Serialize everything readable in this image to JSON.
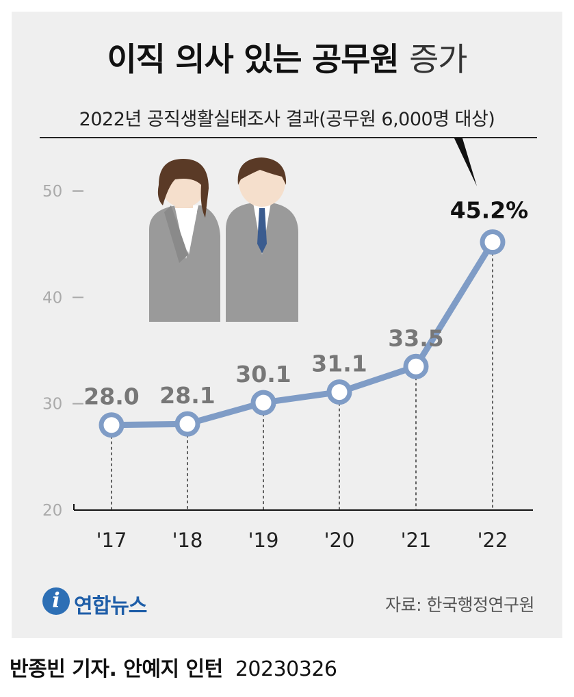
{
  "header": {
    "title_bold": "이직 의사 있는 공무원",
    "title_light": "증가",
    "subtitle": "2022년 공직생활실태조사 결과(공무원 6,000명 대상)"
  },
  "chart_data": {
    "type": "line",
    "title": "이직 의사 있는 공무원 증가",
    "subtitle": "2022년 공직생활실태조사 결과(공무원 6,000명 대상)",
    "categories": [
      "'17",
      "'18",
      "'19",
      "'20",
      "'21",
      "'22"
    ],
    "values": [
      28.0,
      28.1,
      30.1,
      31.1,
      33.5,
      45.2
    ],
    "data_labels": [
      "28.0",
      "28.1",
      "30.1",
      "31.1",
      "33.5",
      "45.2%"
    ],
    "yticks": [
      "20",
      "30",
      "40",
      "50"
    ],
    "ylim": [
      20,
      50
    ],
    "grid": false,
    "line_color": "#7f9cc6",
    "illustration": [
      "female-office-worker-icon",
      "male-office-worker-icon"
    ]
  },
  "footer": {
    "logo_mark": "i",
    "logo_text": "연합뉴스",
    "source": "자료: 한국행정연구원",
    "credit_name": "반종빈 기자. 안예지 인턴",
    "credit_date": "20230326"
  }
}
